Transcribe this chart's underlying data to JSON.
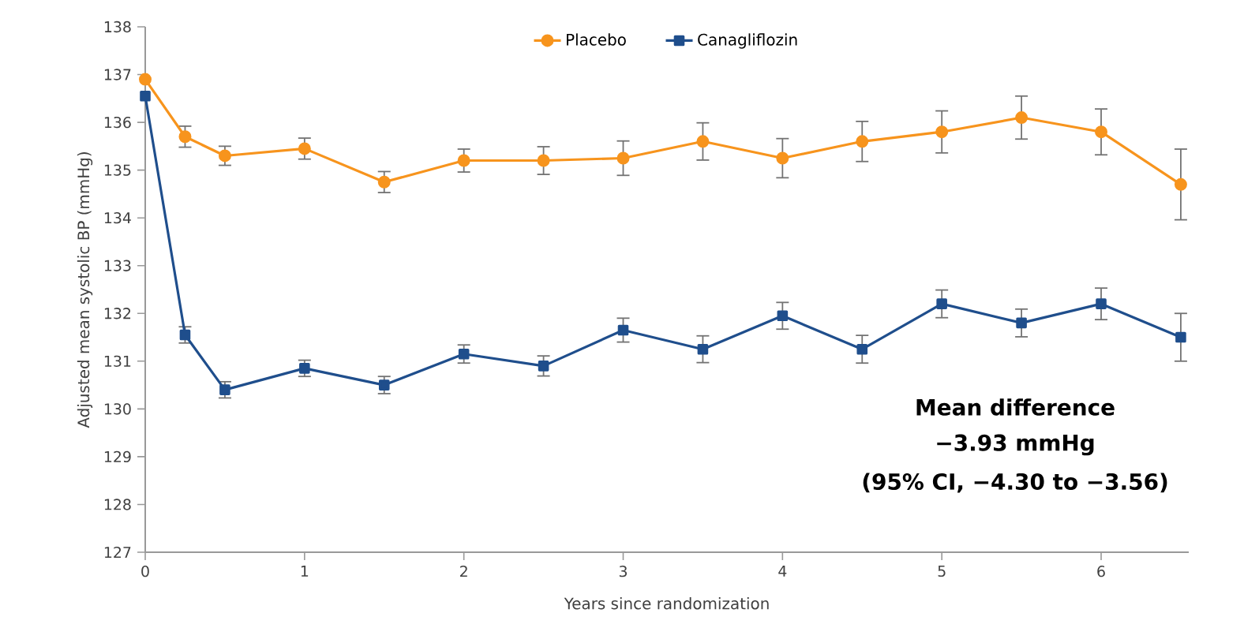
{
  "chart_data": {
    "type": "line",
    "xlabel": "Years since randomization",
    "ylabel": "Adjusted mean systolic BP (mmHg)",
    "x": [
      0,
      0.25,
      0.5,
      1,
      1.5,
      2,
      2.5,
      3,
      3.5,
      4,
      4.5,
      5,
      5.5,
      6,
      6.5
    ],
    "series": [
      {
        "name": "Placebo",
        "color": "#f7941d",
        "marker": "circle",
        "values": [
          136.9,
          135.7,
          135.3,
          135.45,
          134.75,
          135.2,
          135.2,
          135.25,
          135.6,
          135.25,
          135.6,
          135.8,
          136.1,
          135.8,
          134.7
        ],
        "errors": [
          null,
          0.22,
          0.2,
          0.22,
          0.22,
          0.24,
          0.29,
          0.36,
          0.39,
          0.41,
          0.42,
          0.44,
          0.45,
          0.48,
          0.74
        ]
      },
      {
        "name": "Canagliflozin",
        "color": "#1f4e8c",
        "marker": "square",
        "values": [
          136.55,
          131.55,
          130.4,
          130.85,
          130.5,
          131.15,
          130.9,
          131.65,
          131.25,
          131.95,
          131.25,
          132.2,
          131.8,
          132.2,
          131.5
        ],
        "errors": [
          null,
          0.17,
          0.17,
          0.17,
          0.18,
          0.19,
          0.21,
          0.25,
          0.28,
          0.28,
          0.29,
          0.29,
          0.29,
          0.33,
          0.5
        ]
      }
    ],
    "xlim": [
      0,
      6.55
    ],
    "ylim": [
      127,
      138
    ],
    "xticks": [
      0,
      1,
      2,
      3,
      4,
      5,
      6
    ],
    "yticks": [
      127,
      128,
      129,
      130,
      131,
      132,
      133,
      134,
      135,
      136,
      137,
      138
    ],
    "grid": false,
    "legend": "top",
    "line_style": "solid",
    "annotations": [
      "Mean difference",
      "−3.93 mmHg",
      "(95% CI, −4.30 to −3.56)"
    ]
  }
}
